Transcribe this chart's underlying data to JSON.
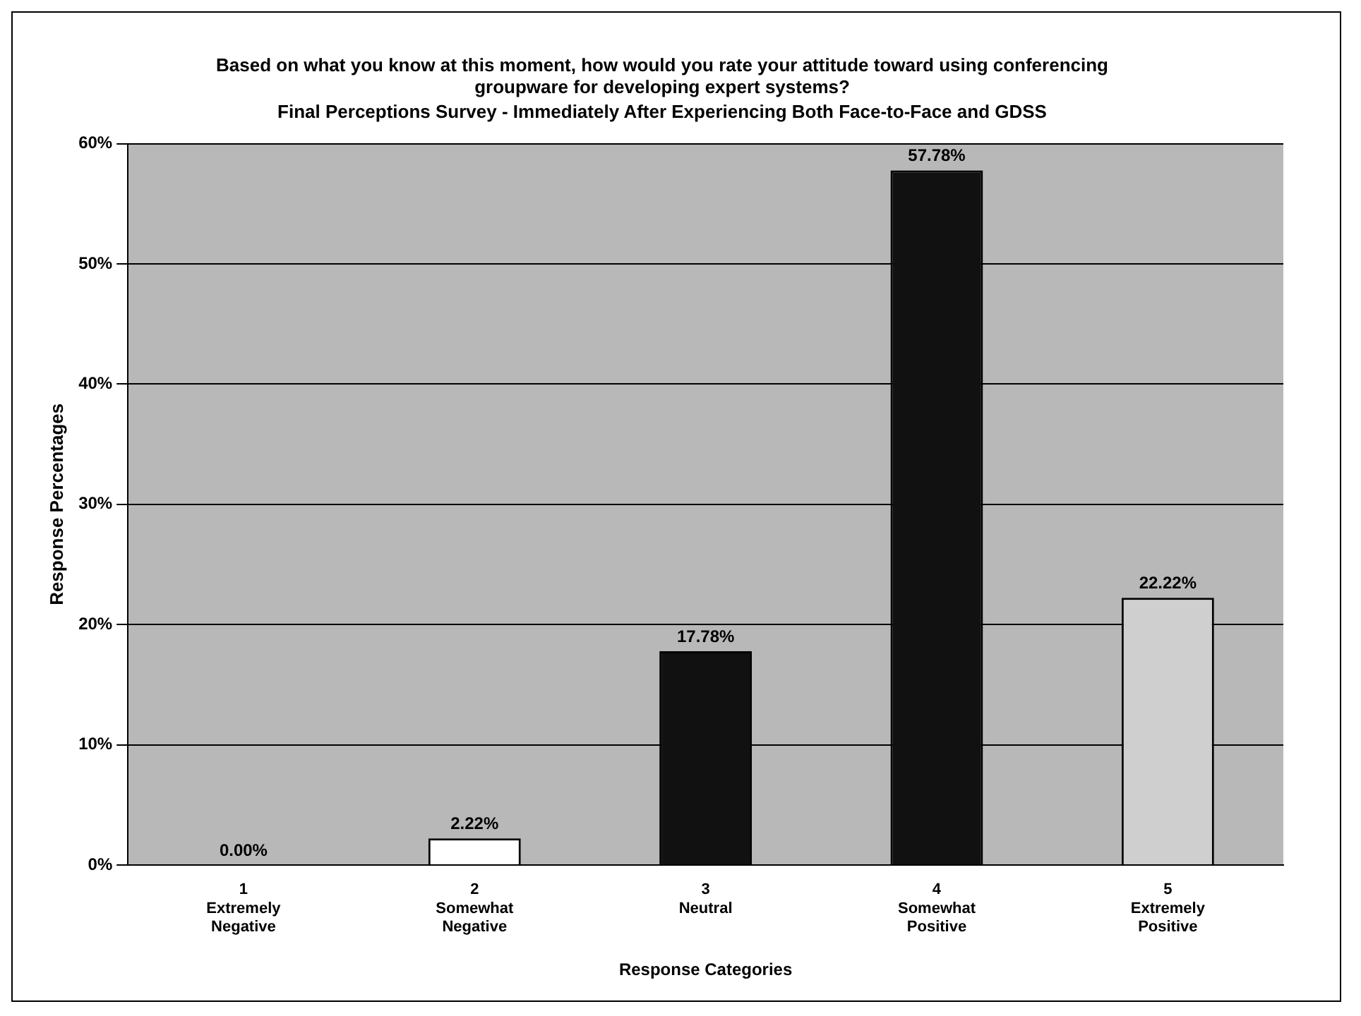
{
  "chart_data": {
    "type": "bar",
    "title": "Based on what you know at this moment, how would you rate your attitude toward using conferencing groupware for developing expert systems?",
    "subtitle": "Final Perceptions Survey - Immediately After Experiencing Both Face-to-Face and GDSS",
    "xlabel": "Response Categories",
    "ylabel": "Response Percentages",
    "categories": [
      "1\nExtremely\nNegative",
      "2\nSomewhat\nNegative",
      "3\nNeutral",
      "4\nSomewhat\nPositive",
      "5\nExtremely\nPositive"
    ],
    "values": [
      0,
      2.22,
      17.78,
      57.78,
      22.22
    ],
    "colors": [
      "#ffffff",
      "#ffffff",
      "#111111",
      "#111111",
      "#cfcfcf"
    ],
    "value_labels": [
      "0.00%",
      "2.22%",
      "17.78%",
      "57.78%",
      "22.22%"
    ],
    "ylim": [
      0,
      60
    ],
    "yticks": [
      {
        "value": 0,
        "label": "0%"
      },
      {
        "value": 10,
        "label": "10%"
      },
      {
        "value": 20,
        "label": "20%"
      },
      {
        "value": 30,
        "label": "30%"
      },
      {
        "value": 40,
        "label": "40%"
      },
      {
        "value": 50,
        "label": "50%"
      },
      {
        "value": 60,
        "label": "60%"
      }
    ],
    "grid": "y",
    "legend": false
  }
}
